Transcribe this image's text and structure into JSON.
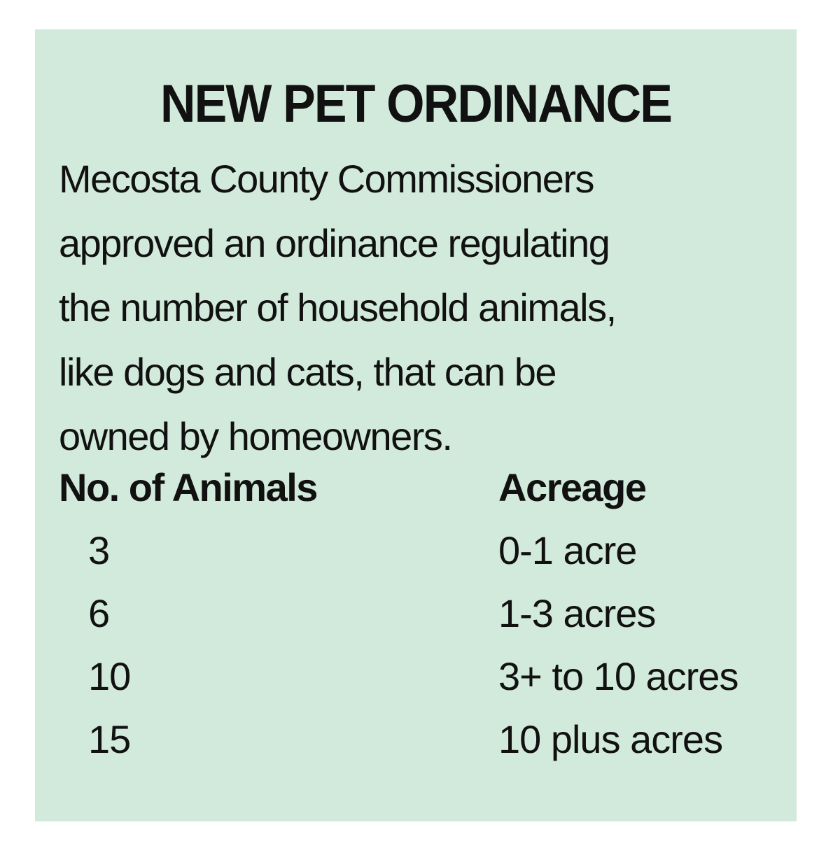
{
  "title": "NEW PET ORDINANCE",
  "description_lines": [
    "Mecosta County Commissioners",
    "approved an ordinance regulating",
    "the number of household animals,",
    "like dogs and cats, that can be",
    "owned by homeowners."
  ],
  "table": {
    "headers": [
      "No. of Animals",
      "Acreage"
    ],
    "rows": [
      [
        "3",
        "0-1 acre"
      ],
      [
        "6",
        "1-3 acres"
      ],
      [
        "10",
        "3+ to 10 acres"
      ],
      [
        "15",
        "10 plus acres"
      ]
    ]
  },
  "colors": {
    "background": "#d2eadb",
    "text": "#111111"
  }
}
